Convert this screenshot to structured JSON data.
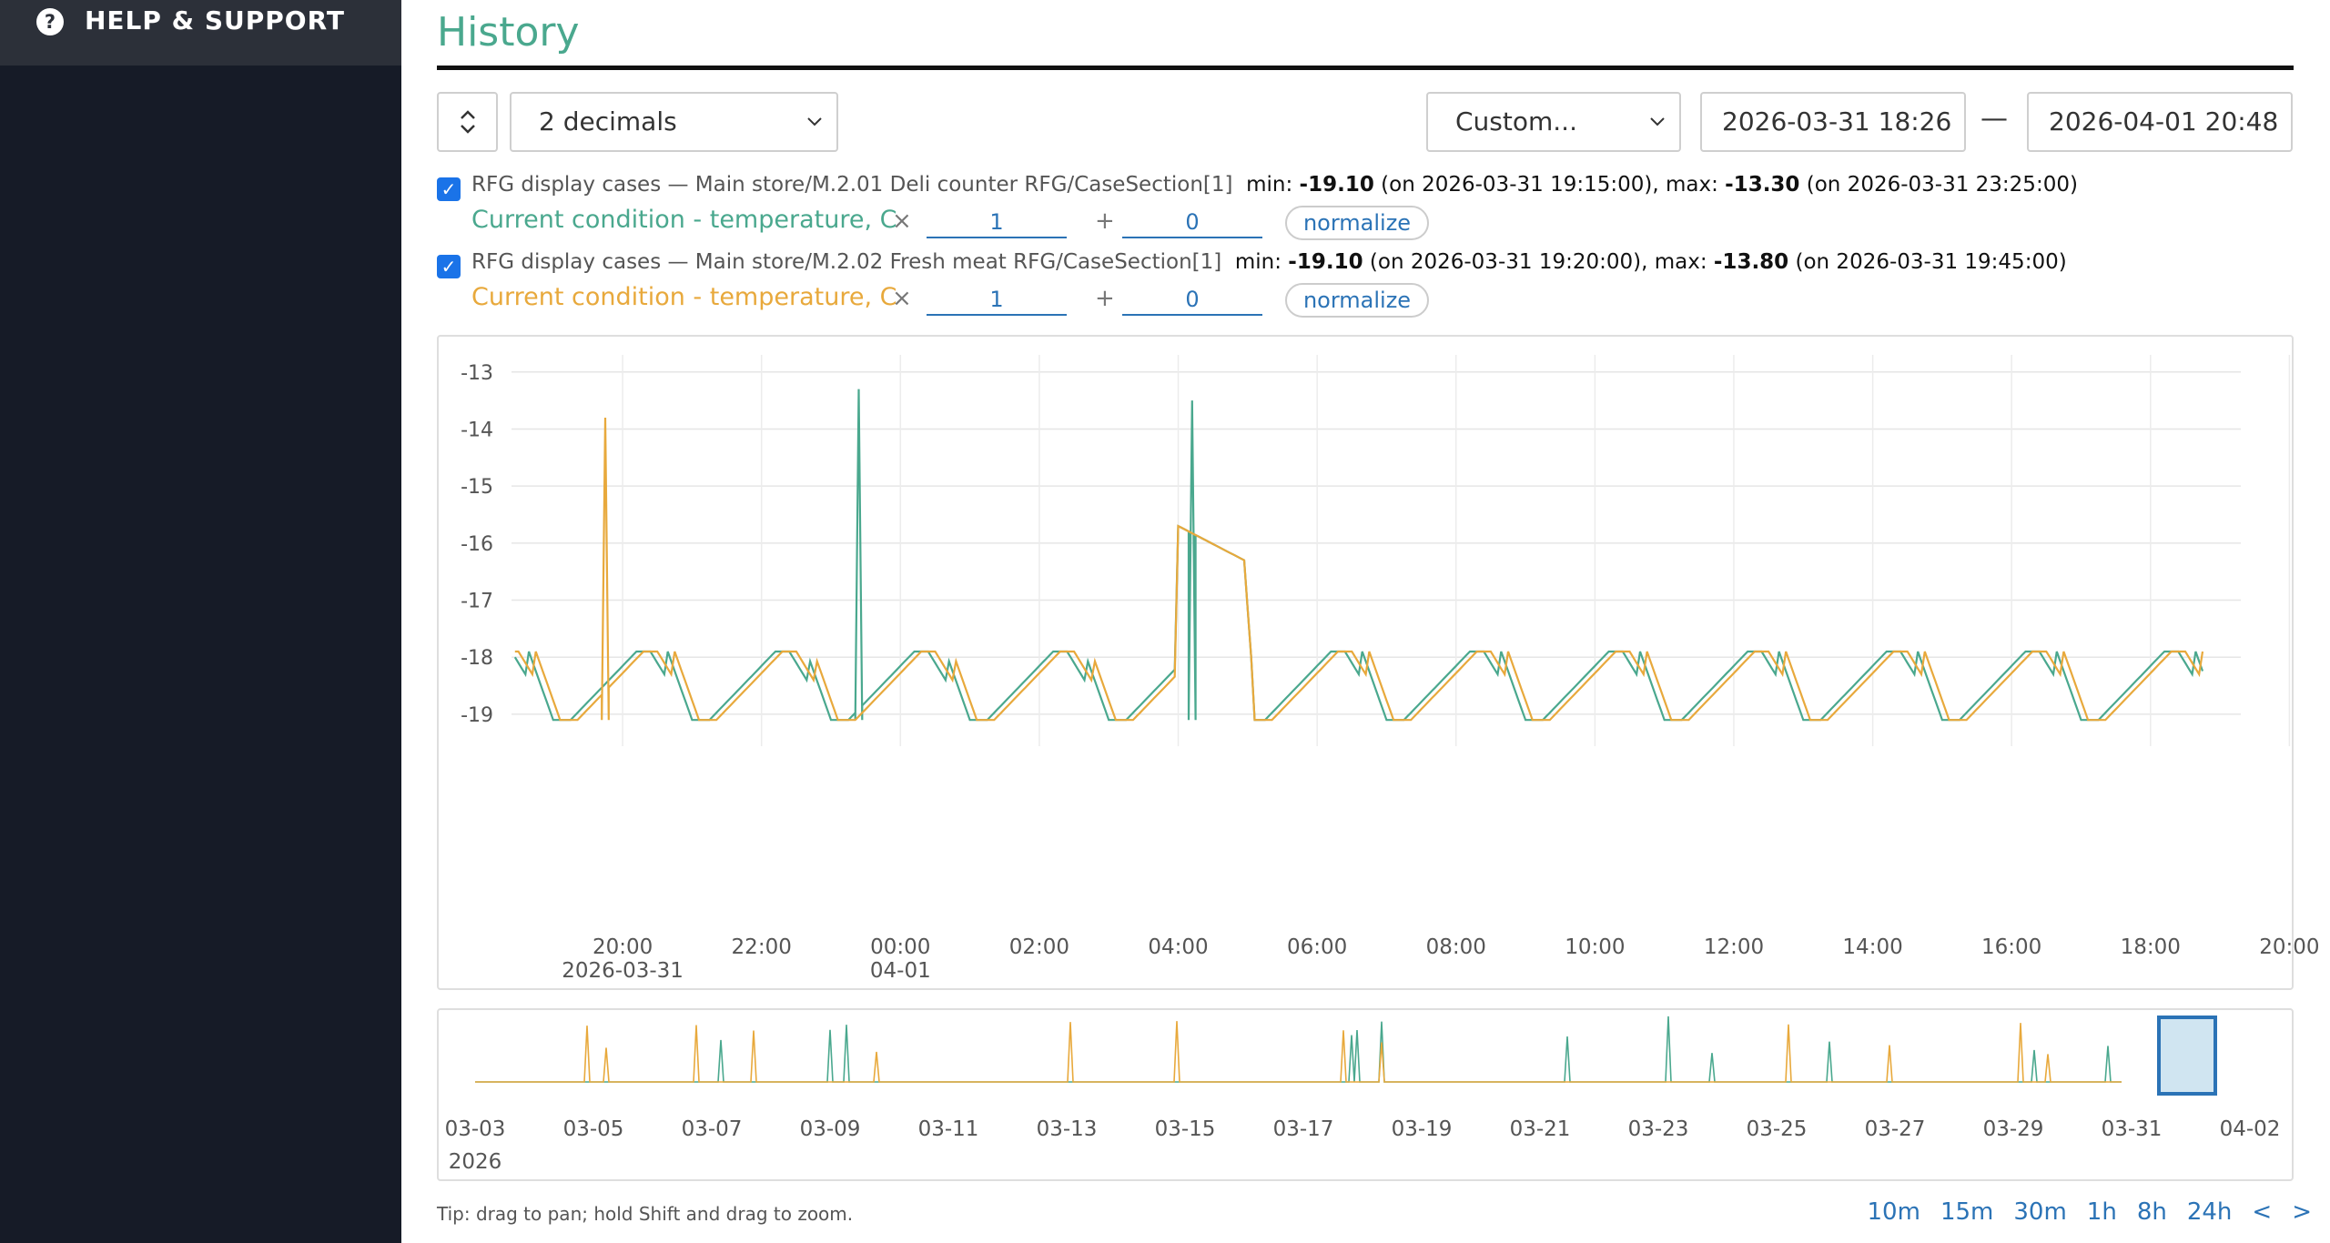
{
  "sidebar": {
    "help_label": "HELP & SUPPORT",
    "help_icon": "question-circle-icon"
  },
  "page": {
    "title": "History"
  },
  "toolbar": {
    "sort_icon": "sort-updown-icon",
    "decimals": "2 decimals",
    "range": "Custom...",
    "date_from": "2026-03-31 18:26",
    "date_sep": "—",
    "date_to": "2026-04-01 20:48"
  },
  "series": [
    {
      "checked": true,
      "path": "RFG display cases — Main store/M.2.01 Deli counter RFG/CaseSection[1]",
      "min_label": "min:",
      "min": "-19.10",
      "min_on": "(on 2026-03-31 19:15:00),",
      "max_label": "max:",
      "max": "-13.30",
      "max_on": "(on 2026-03-31 23:25:00)",
      "name": "Current condition - temperature, C",
      "multiplier": "1",
      "offset": "0",
      "normalize": "normalize",
      "color": "#4aa88e"
    },
    {
      "checked": true,
      "path": "RFG display cases — Main store/M.2.02 Fresh meat RFG/CaseSection[1]",
      "min_label": "min:",
      "min": "-19.10",
      "min_on": "(on 2026-03-31 19:20:00),",
      "max_label": "max:",
      "max": "-13.80",
      "max_on": "(on 2026-03-31 19:45:00)",
      "name": "Current condition - temperature, C",
      "multiplier": "1",
      "offset": "0",
      "normalize": "normalize",
      "color": "#e8a93c"
    }
  ],
  "chart_data": {
    "type": "line",
    "y_ticks": [
      "-13",
      "-14",
      "-15",
      "-16",
      "-17",
      "-18",
      "-19"
    ],
    "ylim": [
      -19.4,
      -12.7
    ],
    "x_ticks": [
      "20:00",
      "22:00",
      "00:00",
      "02:00",
      "04:00",
      "06:00",
      "08:00",
      "10:00",
      "12:00",
      "14:00",
      "16:00",
      "18:00",
      "20:00"
    ],
    "x_sublabels": [
      {
        "tick": "20:00",
        "label": "2026-03-31"
      },
      {
        "tick": "00:00",
        "label": "04-01"
      }
    ],
    "x_range_hours": [
      -1.6,
      23.3
    ],
    "grid": true,
    "series": [
      {
        "color": "#4aa88e",
        "spikes": [
          {
            "t": 3.4,
            "v": -13.3
          },
          {
            "t": 8.2,
            "v": -13.5
          }
        ]
      },
      {
        "color": "#e8a93c",
        "spikes": [
          {
            "t": -0.25,
            "v": -13.8
          }
        ]
      }
    ],
    "defrost_plateau": {
      "t_start": 8.0,
      "t_end": 8.95,
      "v_start": -15.7,
      "v_end": -16.3
    },
    "cycle_low": -19.1,
    "cycle_high": -17.9
  },
  "navigator": {
    "x_ticks": [
      "03-03",
      "03-05",
      "03-07",
      "03-09",
      "03-11",
      "03-13",
      "03-15",
      "03-17",
      "03-19",
      "03-21",
      "03-23",
      "03-25",
      "03-27",
      "03-29",
      "03-31",
      "04-02"
    ],
    "year_label": "2026",
    "selection": {
      "from": "03-31",
      "to": "04-01"
    }
  },
  "footer": {
    "tip": "Tip: drag to pan; hold Shift and drag to zoom.",
    "quick_ranges": [
      "10m",
      "15m",
      "30m",
      "1h",
      "8h",
      "24h",
      "<",
      ">"
    ]
  }
}
